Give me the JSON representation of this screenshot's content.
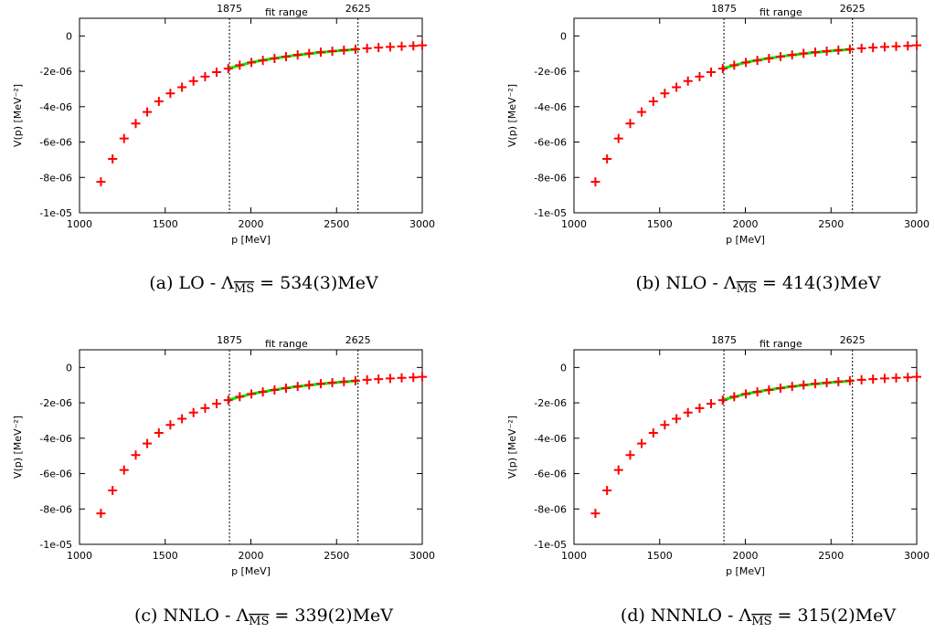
{
  "chart_data": [
    {
      "type": "scatter",
      "caption": {
        "prefix": "(a)  LO - ",
        "lambda": "Λ",
        "sub": "MS",
        "value": " = 534(3)MeV"
      },
      "xlabel": "p [MeV]",
      "ylabel": "V(p) [MeV⁻²]",
      "xlim": [
        1000,
        3000
      ],
      "ylim": [
        -1e-05,
        1e-06
      ],
      "xticks": [
        {
          "v": 1000,
          "label": "1000"
        },
        {
          "v": 1500,
          "label": "1500"
        },
        {
          "v": 2000,
          "label": "2000"
        },
        {
          "v": 2500,
          "label": "2500"
        },
        {
          "v": 3000,
          "label": "3000"
        }
      ],
      "yticks": [
        {
          "v": 0,
          "label": "0"
        },
        {
          "v": -2e-06,
          "label": "-2e-06"
        },
        {
          "v": -4e-06,
          "label": "-4e-06"
        },
        {
          "v": -6e-06,
          "label": "-6e-06"
        },
        {
          "v": -8e-06,
          "label": "-8e-06"
        },
        {
          "v": -1e-05,
          "label": "-1e-05"
        }
      ],
      "vlines": [
        {
          "x": 1875,
          "label": "1875"
        },
        {
          "x": 2625,
          "label": "2625"
        }
      ],
      "fit_range_label": "fit range",
      "points": {
        "color": "#ff0000",
        "x": [
          1125,
          1193,
          1260,
          1328,
          1395,
          1463,
          1530,
          1598,
          1665,
          1733,
          1800,
          1868,
          1935,
          2003,
          2070,
          2138,
          2205,
          2273,
          2340,
          2408,
          2475,
          2543,
          2610,
          2678,
          2745,
          2813,
          2880,
          2948,
          3000
        ],
        "y": [
          -8.25e-06,
          -6.95e-06,
          -5.8e-06,
          -4.95e-06,
          -4.3e-06,
          -3.7e-06,
          -3.25e-06,
          -2.9e-06,
          -2.55e-06,
          -2.3e-06,
          -2.05e-06,
          -1.85e-06,
          -1.65e-06,
          -1.5e-06,
          -1.38e-06,
          -1.27e-06,
          -1.17e-06,
          -1.07e-06,
          -9.9e-07,
          -9.2e-07,
          -8.6e-07,
          -8e-07,
          -7.5e-07,
          -7e-07,
          -6.6e-07,
          -6.2e-07,
          -5.9e-07,
          -5.6e-07,
          -5.3e-07
        ]
      },
      "fit": {
        "color": "#00ee00",
        "x": [
          1875,
          2000,
          2125,
          2250,
          2375,
          2500,
          2625
        ],
        "y": [
          -1.82e-06,
          -1.5e-06,
          -1.28e-06,
          -1.1e-06,
          -9.6e-07,
          -8.5e-07,
          -7.5e-07
        ]
      }
    },
    {
      "type": "scatter",
      "caption": {
        "prefix": "(b)  NLO - ",
        "lambda": "Λ",
        "sub": "MS",
        "value": " = 414(3)MeV"
      },
      "xlabel": "p [MeV]",
      "ylabel": "V(p) [MeV⁻²]",
      "xlim": [
        1000,
        3000
      ],
      "ylim": [
        -1e-05,
        1e-06
      ],
      "xticks": [
        {
          "v": 1000,
          "label": "1000"
        },
        {
          "v": 1500,
          "label": "1500"
        },
        {
          "v": 2000,
          "label": "2000"
        },
        {
          "v": 2500,
          "label": "2500"
        },
        {
          "v": 3000,
          "label": "3000"
        }
      ],
      "yticks": [
        {
          "v": 0,
          "label": "0"
        },
        {
          "v": -2e-06,
          "label": "-2e-06"
        },
        {
          "v": -4e-06,
          "label": "-4e-06"
        },
        {
          "v": -6e-06,
          "label": "-6e-06"
        },
        {
          "v": -8e-06,
          "label": "-8e-06"
        },
        {
          "v": -1e-05,
          "label": "-1e-05"
        }
      ],
      "vlines": [
        {
          "x": 1875,
          "label": "1875"
        },
        {
          "x": 2625,
          "label": "2625"
        }
      ],
      "fit_range_label": "fit range",
      "points": {
        "color": "#ff0000",
        "x": [
          1125,
          1193,
          1260,
          1328,
          1395,
          1463,
          1530,
          1598,
          1665,
          1733,
          1800,
          1868,
          1935,
          2003,
          2070,
          2138,
          2205,
          2273,
          2340,
          2408,
          2475,
          2543,
          2610,
          2678,
          2745,
          2813,
          2880,
          2948,
          3000
        ],
        "y": [
          -8.25e-06,
          -6.95e-06,
          -5.8e-06,
          -4.95e-06,
          -4.3e-06,
          -3.7e-06,
          -3.25e-06,
          -2.9e-06,
          -2.55e-06,
          -2.3e-06,
          -2.05e-06,
          -1.85e-06,
          -1.65e-06,
          -1.5e-06,
          -1.38e-06,
          -1.27e-06,
          -1.17e-06,
          -1.07e-06,
          -9.9e-07,
          -9.2e-07,
          -8.6e-07,
          -8e-07,
          -7.5e-07,
          -7e-07,
          -6.6e-07,
          -6.2e-07,
          -5.9e-07,
          -5.6e-07,
          -5.3e-07
        ]
      },
      "fit": {
        "color": "#00ee00",
        "x": [
          1875,
          2000,
          2125,
          2250,
          2375,
          2500,
          2625
        ],
        "y": [
          -1.82e-06,
          -1.5e-06,
          -1.28e-06,
          -1.1e-06,
          -9.6e-07,
          -8.5e-07,
          -7.5e-07
        ]
      }
    },
    {
      "type": "scatter",
      "caption": {
        "prefix": "(c)  NNLO - ",
        "lambda": "Λ",
        "sub": "MS",
        "value": " = 339(2)MeV"
      },
      "xlabel": "p [MeV]",
      "ylabel": "V(p) [MeV⁻²]",
      "xlim": [
        1000,
        3000
      ],
      "ylim": [
        -1e-05,
        1e-06
      ],
      "xticks": [
        {
          "v": 1000,
          "label": "1000"
        },
        {
          "v": 1500,
          "label": "1500"
        },
        {
          "v": 2000,
          "label": "2000"
        },
        {
          "v": 2500,
          "label": "2500"
        },
        {
          "v": 3000,
          "label": "3000"
        }
      ],
      "yticks": [
        {
          "v": 0,
          "label": "0"
        },
        {
          "v": -2e-06,
          "label": "-2e-06"
        },
        {
          "v": -4e-06,
          "label": "-4e-06"
        },
        {
          "v": -6e-06,
          "label": "-6e-06"
        },
        {
          "v": -8e-06,
          "label": "-8e-06"
        },
        {
          "v": -1e-05,
          "label": "-1e-05"
        }
      ],
      "vlines": [
        {
          "x": 1875,
          "label": "1875"
        },
        {
          "x": 2625,
          "label": "2625"
        }
      ],
      "fit_range_label": "fit range",
      "points": {
        "color": "#ff0000",
        "x": [
          1125,
          1193,
          1260,
          1328,
          1395,
          1463,
          1530,
          1598,
          1665,
          1733,
          1800,
          1868,
          1935,
          2003,
          2070,
          2138,
          2205,
          2273,
          2340,
          2408,
          2475,
          2543,
          2610,
          2678,
          2745,
          2813,
          2880,
          2948,
          3000
        ],
        "y": [
          -8.25e-06,
          -6.95e-06,
          -5.8e-06,
          -4.95e-06,
          -4.3e-06,
          -3.7e-06,
          -3.25e-06,
          -2.9e-06,
          -2.55e-06,
          -2.3e-06,
          -2.05e-06,
          -1.85e-06,
          -1.65e-06,
          -1.5e-06,
          -1.38e-06,
          -1.27e-06,
          -1.17e-06,
          -1.07e-06,
          -9.9e-07,
          -9.2e-07,
          -8.6e-07,
          -8e-07,
          -7.5e-07,
          -7e-07,
          -6.6e-07,
          -6.2e-07,
          -5.9e-07,
          -5.6e-07,
          -5.3e-07
        ]
      },
      "fit": {
        "color": "#00ee00",
        "x": [
          1875,
          2000,
          2125,
          2250,
          2375,
          2500,
          2625
        ],
        "y": [
          -1.82e-06,
          -1.5e-06,
          -1.28e-06,
          -1.1e-06,
          -9.6e-07,
          -8.5e-07,
          -7.5e-07
        ]
      }
    },
    {
      "type": "scatter",
      "caption": {
        "prefix": "(d)  NNNLO - ",
        "lambda": "Λ",
        "sub": "MS",
        "value": " = 315(2)MeV"
      },
      "xlabel": "p [MeV]",
      "ylabel": "V(p) [MeV⁻²]",
      "xlim": [
        1000,
        3000
      ],
      "ylim": [
        -1e-05,
        1e-06
      ],
      "xticks": [
        {
          "v": 1000,
          "label": "1000"
        },
        {
          "v": 1500,
          "label": "1500"
        },
        {
          "v": 2000,
          "label": "2000"
        },
        {
          "v": 2500,
          "label": "2500"
        },
        {
          "v": 3000,
          "label": "3000"
        }
      ],
      "yticks": [
        {
          "v": 0,
          "label": "0"
        },
        {
          "v": -2e-06,
          "label": "-2e-06"
        },
        {
          "v": -4e-06,
          "label": "-4e-06"
        },
        {
          "v": -6e-06,
          "label": "-6e-06"
        },
        {
          "v": -8e-06,
          "label": "-8e-06"
        },
        {
          "v": -1e-05,
          "label": "-1e-05"
        }
      ],
      "vlines": [
        {
          "x": 1875,
          "label": "1875"
        },
        {
          "x": 2625,
          "label": "2625"
        }
      ],
      "fit_range_label": "fit range",
      "points": {
        "color": "#ff0000",
        "x": [
          1125,
          1193,
          1260,
          1328,
          1395,
          1463,
          1530,
          1598,
          1665,
          1733,
          1800,
          1868,
          1935,
          2003,
          2070,
          2138,
          2205,
          2273,
          2340,
          2408,
          2475,
          2543,
          2610,
          2678,
          2745,
          2813,
          2880,
          2948,
          3000
        ],
        "y": [
          -8.25e-06,
          -6.95e-06,
          -5.8e-06,
          -4.95e-06,
          -4.3e-06,
          -3.7e-06,
          -3.25e-06,
          -2.9e-06,
          -2.55e-06,
          -2.3e-06,
          -2.05e-06,
          -1.85e-06,
          -1.65e-06,
          -1.5e-06,
          -1.38e-06,
          -1.27e-06,
          -1.17e-06,
          -1.07e-06,
          -9.9e-07,
          -9.2e-07,
          -8.6e-07,
          -8e-07,
          -7.5e-07,
          -7e-07,
          -6.6e-07,
          -6.2e-07,
          -5.9e-07,
          -5.6e-07,
          -5.3e-07
        ]
      },
      "fit": {
        "color": "#00ee00",
        "x": [
          1875,
          2000,
          2125,
          2250,
          2375,
          2500,
          2625
        ],
        "y": [
          -1.82e-06,
          -1.5e-06,
          -1.28e-06,
          -1.1e-06,
          -9.6e-07,
          -8.5e-07,
          -7.5e-07
        ]
      }
    }
  ]
}
